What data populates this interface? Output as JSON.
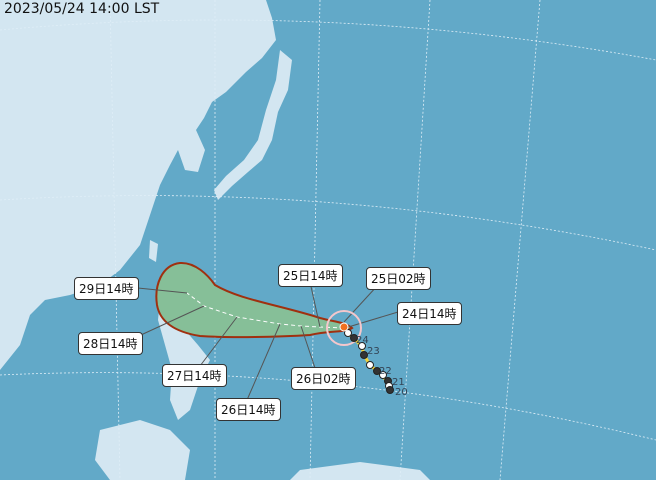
{
  "timestamp": "2023/05/24 14:00 LST",
  "colors": {
    "ocean": "#62a9c8",
    "land": "#d3e6f1",
    "cone_fill": "#86bf98",
    "cone_outline": "#a0300f",
    "current_position": "#f07020"
  },
  "forecast_labels": [
    "29日14時",
    "28日14時",
    "27日14時",
    "26日14時",
    "26日02時",
    "25日14時",
    "25日02時",
    "24日14時"
  ],
  "past_track_date_labels": [
    "24",
    "23",
    "22",
    "21",
    "20"
  ]
}
